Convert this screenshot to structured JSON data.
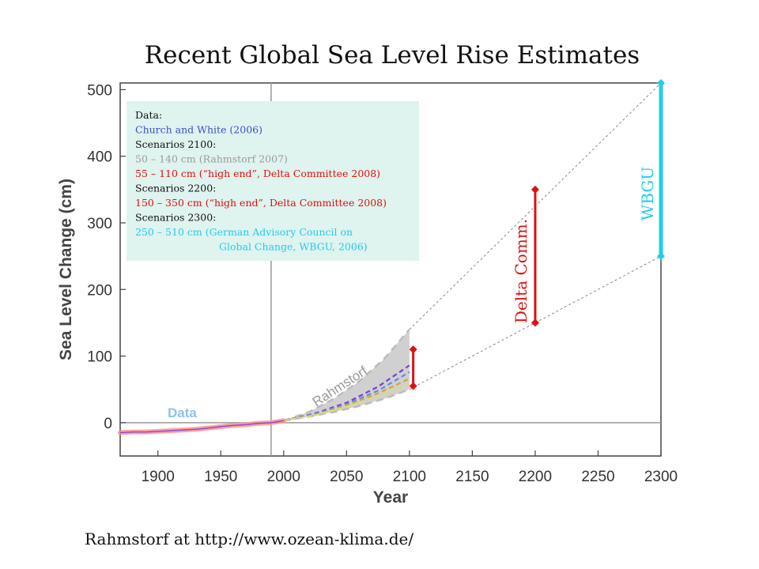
{
  "page": {
    "title": "Recent Global Sea Level Rise Estimates",
    "caption": "Rahmstorf at http://www.ozean-klima.de/"
  },
  "chart_data": {
    "type": "line",
    "xlabel": "Year",
    "ylabel": "Sea Level Change (cm)",
    "xlim": [
      1870,
      2300
    ],
    "ylim": [
      -50,
      510
    ],
    "x_ticks": [
      1900,
      1950,
      2000,
      2050,
      2100,
      2150,
      2200,
      2250,
      2300
    ],
    "y_ticks": [
      0,
      100,
      200,
      300,
      400,
      500
    ],
    "reference_year": 1990,
    "series": [
      {
        "name": "Data",
        "color": "#ff8f8f",
        "x": [
          1870,
          1880,
          1890,
          1900,
          1910,
          1920,
          1930,
          1940,
          1950,
          1960,
          1970,
          1980,
          1990,
          2000
        ],
        "values": [
          -15,
          -14,
          -14,
          -13,
          -12,
          -11,
          -10,
          -8,
          -6,
          -4,
          -3,
          -1,
          0,
          3
        ]
      },
      {
        "name": "Rahmstorf",
        "color": "#aaaaaa",
        "x": [
          2000,
          2020,
          2040,
          2060,
          2080,
          2100
        ],
        "low": [
          3,
          9,
          16,
          25,
          36,
          50
        ],
        "high": [
          3,
          16,
          36,
          62,
          96,
          140
        ]
      }
    ],
    "model_runs": [
      {
        "color": "#7a3fd0",
        "x": [
          2000,
          2025,
          2050,
          2075,
          2100
        ],
        "values": [
          3,
          14,
          30,
          54,
          86
        ]
      },
      {
        "color": "#5a8fe0",
        "x": [
          2000,
          2025,
          2050,
          2075,
          2100
        ],
        "values": [
          3,
          13,
          28,
          48,
          76
        ]
      },
      {
        "color": "#e0a030",
        "x": [
          2000,
          2025,
          2050,
          2075,
          2100
        ],
        "values": [
          3,
          12,
          26,
          44,
          66
        ]
      },
      {
        "color": "#d8e070",
        "x": [
          2000,
          2025,
          2050,
          2075,
          2100
        ],
        "values": [
          3,
          11,
          24,
          40,
          58
        ]
      }
    ],
    "projections": [
      {
        "name": "Delta Comm.",
        "color": "#e01010",
        "x": 2200,
        "low": 150,
        "high": 350
      },
      {
        "name": "WBGU",
        "color": "#22ccee",
        "x": 2300,
        "low": 250,
        "high": 510
      },
      {
        "name": "",
        "color": "#e01010",
        "x": 2103,
        "low": 55,
        "high": 110
      }
    ],
    "annotations": [
      {
        "text": "Data",
        "color": "#8fc2ee",
        "x": 1930,
        "y": 15
      },
      {
        "text": "Rahmstorf",
        "color": "#999999",
        "x": 2050,
        "y": 63
      },
      {
        "text": "Delta Comm.",
        "color": "#e01010",
        "x": 2190,
        "y": 250
      },
      {
        "text": "WBGU",
        "color": "#22ccee",
        "x": 2290,
        "y": 350
      }
    ],
    "legend": {
      "placement": "top-left",
      "background": "#dff3ef",
      "lines": [
        {
          "text": "Data:",
          "color": "#111111"
        },
        {
          "text": "Church and White (2006)",
          "color": "#3d4fc8"
        },
        {
          "text": "Scenarios 2100:",
          "color": "#111111"
        },
        {
          "text": "50 – 140 cm (Rahmstorf 2007)",
          "color": "#9a9a9a"
        },
        {
          "text": "55 – 110 cm (“high end”, Delta Committee 2008)",
          "color": "#e01010"
        },
        {
          "text": "Scenarios 2200:",
          "color": "#111111"
        },
        {
          "text": "150 – 350 cm (“high end”, Delta Committee 2008)",
          "color": "#e01010"
        },
        {
          "text": "Scenarios 2300:",
          "color": "#111111"
        },
        {
          "text": "250 – 510 cm (German Advisory Council on",
          "color": "#22ccee"
        },
        {
          "text": "Global Change, WBGU, 2006)",
          "color": "#22ccee",
          "indent": true
        }
      ]
    }
  }
}
